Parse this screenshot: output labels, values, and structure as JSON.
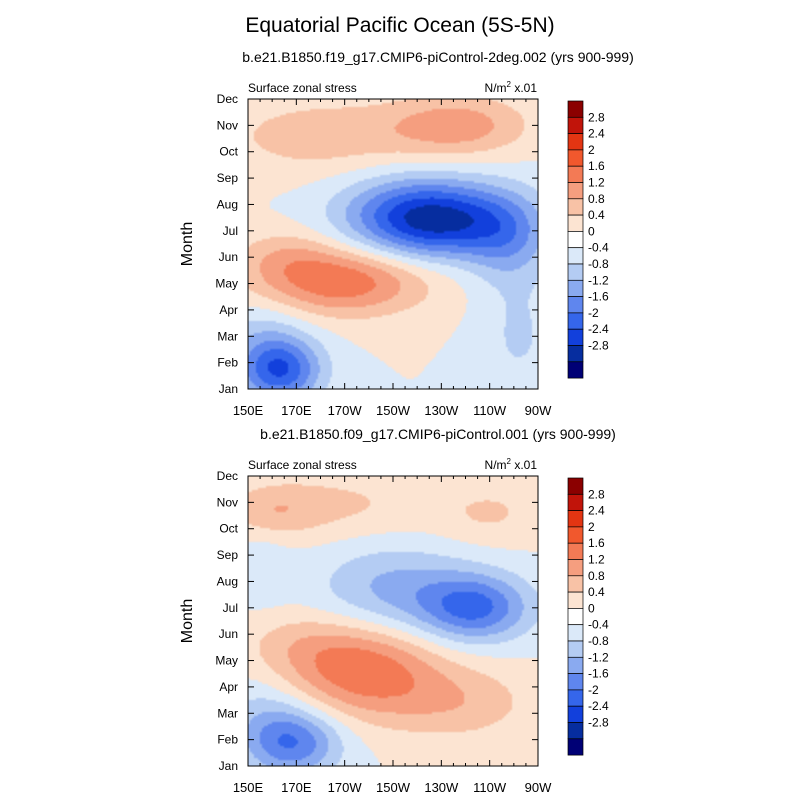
{
  "figure": {
    "title": "Equatorial Pacific Ocean (5S-5N)"
  },
  "colorbar": {
    "levels": [
      "2.8",
      "2.4",
      "2",
      "1.6",
      "1.2",
      "0.8",
      "0.4",
      "0",
      "-0.4",
      "-0.8",
      "-1.2",
      "-1.6",
      "-2",
      "-2.4",
      "-2.8"
    ],
    "colors": [
      "#8b0000",
      "#c1140a",
      "#e33512",
      "#f1582d",
      "#f37a55",
      "#f59e7f",
      "#f8c2a6",
      "#fce4d2",
      "#ffffff",
      "#dbe9f9",
      "#b4ccf3",
      "#8aaaf0",
      "#5f86ee",
      "#3566eb",
      "#1240dc",
      "#062d9f",
      "#000075"
    ]
  },
  "chart_data": [
    {
      "type": "heatmap",
      "title": "b.e21.B1850.f19_g17.CMIP6-piControl-2deg.002 (yrs 900-999)",
      "left_label": "Surface zonal stress",
      "right_label_base": "N/m",
      "right_label_exp": "2",
      "right_label_scale": " x.01",
      "ylabel": "Month",
      "xlabel": "",
      "x_tick_labels": [
        "150E",
        "170E",
        "170W",
        "150W",
        "130W",
        "110W",
        "90W"
      ],
      "x_tick_values": [
        150,
        170,
        190,
        210,
        230,
        250,
        270
      ],
      "y_tick_labels": [
        "Jan",
        "Feb",
        "Mar",
        "Apr",
        "May",
        "Jun",
        "Jul",
        "Aug",
        "Sep",
        "Oct",
        "Nov",
        "Dec"
      ],
      "xlim": [
        150,
        270
      ],
      "ylim": [
        1,
        12
      ],
      "contour_levels": [
        -2.8,
        -2.4,
        -2.0,
        -1.6,
        -1.2,
        -0.8,
        -0.4,
        0,
        0.4,
        0.8,
        1.2,
        1.6,
        2.0,
        2.4,
        2.8
      ],
      "features": [
        {
          "x": 163,
          "y": 1.7,
          "sx": 12,
          "sy": 0.85,
          "amp": -1.95
        },
        {
          "x": 156,
          "y": 3.1,
          "sx": 14,
          "sy": 1.0,
          "amp": -0.5
        },
        {
          "x": 188,
          "y": 5.1,
          "sx": 25,
          "sy": 0.9,
          "amp": 1.55
        },
        {
          "x": 165,
          "y": 6.1,
          "sx": 14,
          "sy": 0.7,
          "amp": 0.45
        },
        {
          "x": 232,
          "y": 7.4,
          "sx": 22,
          "sy": 1.0,
          "amp": -2.1
        },
        {
          "x": 212,
          "y": 7.6,
          "sx": 20,
          "sy": 1.1,
          "amp": -0.9
        },
        {
          "x": 258,
          "y": 6.6,
          "sx": 12,
          "sy": 1.2,
          "amp": -0.8
        },
        {
          "x": 182,
          "y": 10.6,
          "sx": 30,
          "sy": 1.0,
          "amp": 0.65
        },
        {
          "x": 237,
          "y": 11.0,
          "sx": 20,
          "sy": 0.8,
          "amp": 1.0
        },
        {
          "x": 262,
          "y": 3.0,
          "sx": 11,
          "sy": 1.6,
          "amp": -0.45
        }
      ]
    },
    {
      "type": "heatmap",
      "title": "b.e21.B1850.f09_g17.CMIP6-piControl.001 (yrs 900-999)",
      "left_label": "Surface zonal stress",
      "right_label_base": "N/m",
      "right_label_exp": "2",
      "right_label_scale": " x.01",
      "ylabel": "Month",
      "xlabel": "",
      "x_tick_labels": [
        "150E",
        "170E",
        "170W",
        "150W",
        "130W",
        "110W",
        "90W"
      ],
      "x_tick_values": [
        150,
        170,
        190,
        210,
        230,
        250,
        270
      ],
      "y_tick_labels": [
        "Jan",
        "Feb",
        "Mar",
        "Apr",
        "May",
        "Jun",
        "Jul",
        "Aug",
        "Sep",
        "Oct",
        "Nov",
        "Dec"
      ],
      "xlim": [
        150,
        270
      ],
      "ylim": [
        1,
        12
      ],
      "contour_levels": [
        -2.8,
        -2.4,
        -2.0,
        -1.6,
        -1.2,
        -0.8,
        -0.4,
        0,
        0.4,
        0.8,
        1.2,
        1.6,
        2.0,
        2.4,
        2.8
      ],
      "features": [
        {
          "x": 168,
          "y": 1.9,
          "sx": 14,
          "sy": 0.9,
          "amp": -1.6
        },
        {
          "x": 156,
          "y": 3.2,
          "sx": 12,
          "sy": 1.0,
          "amp": -0.4
        },
        {
          "x": 198,
          "y": 4.6,
          "sx": 22,
          "sy": 1.2,
          "amp": 1.45
        },
        {
          "x": 237,
          "y": 3.4,
          "sx": 22,
          "sy": 1.0,
          "amp": 0.65
        },
        {
          "x": 172,
          "y": 5.6,
          "sx": 18,
          "sy": 0.9,
          "amp": 0.45
        },
        {
          "x": 244,
          "y": 7.0,
          "sx": 16,
          "sy": 0.9,
          "amp": -1.65
        },
        {
          "x": 210,
          "y": 7.7,
          "sx": 22,
          "sy": 1.2,
          "amp": -0.9
        },
        {
          "x": 160,
          "y": 10.7,
          "sx": 14,
          "sy": 0.7,
          "amp": 0.6
        },
        {
          "x": 190,
          "y": 10.9,
          "sx": 24,
          "sy": 0.9,
          "amp": 0.45
        },
        {
          "x": 250,
          "y": 10.6,
          "sx": 16,
          "sy": 0.8,
          "amp": 0.45
        },
        {
          "x": 155,
          "y": 8.4,
          "sx": 8,
          "sy": 0.9,
          "amp": -0.35
        }
      ]
    }
  ]
}
